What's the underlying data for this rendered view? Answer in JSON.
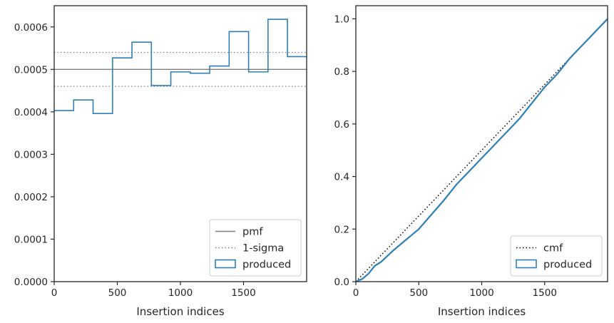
{
  "colors": {
    "produced": "#2e7fb5",
    "pmf": "#7f7f7f",
    "sigma": "#7f7f7f",
    "cmf": "#000000",
    "axes": "#262626"
  },
  "chart_data": [
    {
      "type": "histogram",
      "xlabel": "Insertion indices",
      "ylabel": "",
      "xlim": [
        0,
        2000
      ],
      "ylim": [
        0,
        0.00065
      ],
      "xticks": [
        0,
        500,
        1000,
        1500
      ],
      "xtick_labels": [
        "0",
        "500",
        "1000",
        "1500"
      ],
      "yticks": [
        0,
        0.0001,
        0.0002,
        0.0003,
        0.0004,
        0.0005,
        0.0006
      ],
      "ytick_labels": [
        "0.0000",
        "0.0001",
        "0.0002",
        "0.0003",
        "0.0004",
        "0.0005",
        "0.0006"
      ],
      "bin_edges": [
        0,
        154,
        308,
        462,
        616,
        770,
        924,
        1078,
        1232,
        1386,
        1540,
        1694,
        1848,
        2000
      ],
      "series": [
        {
          "name": "produced",
          "type": "step",
          "values": [
            0.000403,
            0.000428,
            0.000396,
            0.000527,
            0.000564,
            0.000462,
            0.000494,
            0.000491,
            0.000508,
            0.000589,
            0.000494,
            0.000618,
            0.00053
          ]
        }
      ],
      "reference_lines": [
        {
          "name": "pmf",
          "y": 0.0005,
          "style": "solid"
        },
        {
          "name": "1-sigma",
          "y": 0.00054,
          "style": "dotted"
        },
        {
          "name": "1-sigma",
          "y": 0.00046,
          "style": "dotted"
        }
      ],
      "legend": {
        "position": "lower right",
        "entries": [
          {
            "label": "pmf",
            "kind": "line-solid"
          },
          {
            "label": "1-sigma",
            "kind": "line-dotted"
          },
          {
            "label": "produced",
            "kind": "patch"
          }
        ]
      }
    },
    {
      "type": "line",
      "xlabel": "Insertion indices",
      "ylabel": "",
      "xlim": [
        0,
        2000
      ],
      "ylim": [
        0,
        1.05
      ],
      "xticks": [
        0,
        500,
        1000,
        1500
      ],
      "xtick_labels": [
        "0",
        "500",
        "1000",
        "1500"
      ],
      "yticks": [
        0,
        0.2,
        0.4,
        0.6,
        0.8,
        1.0
      ],
      "ytick_labels": [
        "0.0",
        "0.2",
        "0.4",
        "0.6",
        "0.8",
        "1.0"
      ],
      "series": [
        {
          "name": "cmf",
          "style": "dotted",
          "x": [
            0,
            2000
          ],
          "y": [
            0,
            1.0
          ]
        },
        {
          "name": "produced",
          "style": "solid",
          "x": [
            0,
            50,
            100,
            150,
            200,
            300,
            400,
            450,
            500,
            600,
            700,
            800,
            900,
            1000,
            1100,
            1200,
            1300,
            1400,
            1500,
            1600,
            1700,
            1800,
            1900,
            2000
          ],
          "y": [
            0,
            0.01,
            0.03,
            0.06,
            0.075,
            0.12,
            0.16,
            0.18,
            0.2,
            0.255,
            0.31,
            0.37,
            0.42,
            0.47,
            0.52,
            0.57,
            0.62,
            0.68,
            0.74,
            0.79,
            0.85,
            0.9,
            0.95,
            1.0
          ]
        }
      ],
      "legend": {
        "position": "lower right",
        "entries": [
          {
            "label": "cmf",
            "kind": "line-dotted"
          },
          {
            "label": "produced",
            "kind": "patch"
          }
        ]
      }
    }
  ]
}
